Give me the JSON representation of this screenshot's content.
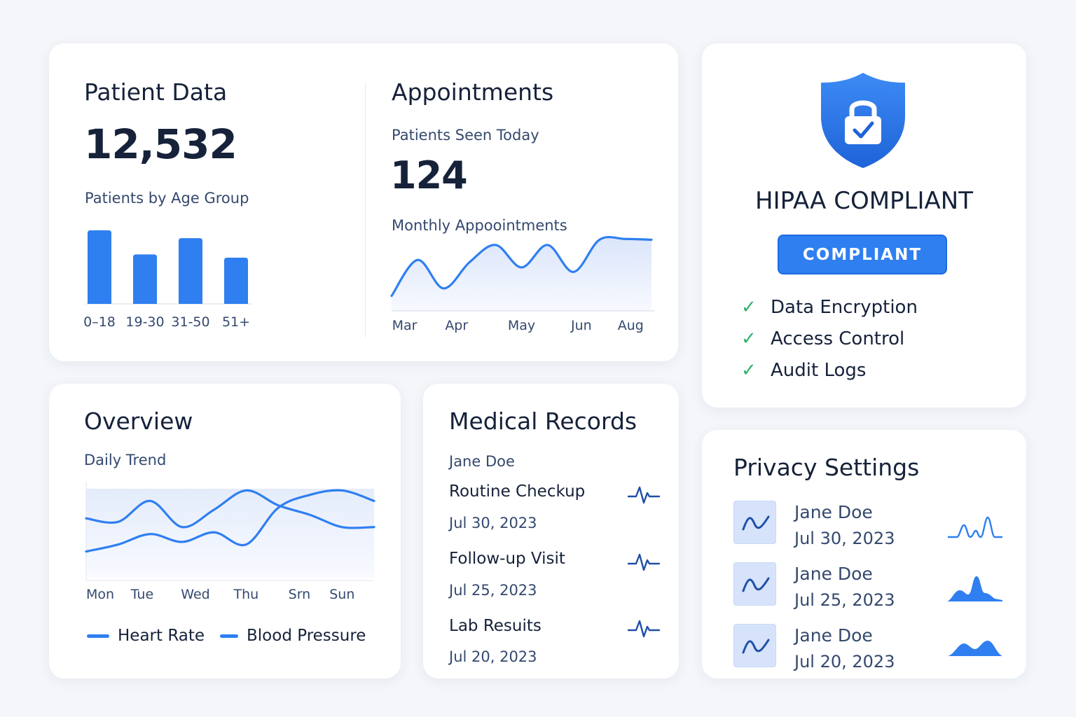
{
  "colors": {
    "accent": "#2f7ff0",
    "accent_fill": "#e9effb",
    "check": "#2fb36b",
    "text_dark": "#16223a",
    "text_muted": "#34496e",
    "background": "#f4f6fa"
  },
  "patient_data": {
    "title": "Patient Data",
    "total": "12,532",
    "chart_title": "Patients by Age Group"
  },
  "appointments": {
    "title": "Appointments",
    "seen_label": "Patients Seen Today",
    "seen_value": "124",
    "chart_title": "Monthly Appoointments"
  },
  "hipaa": {
    "shield_icon": "shield-lock-check-icon",
    "title": "HIPAA COMPLIANT",
    "badge": "COMPLIANT",
    "items": [
      {
        "icon": "check-icon",
        "label": "Data Encryption"
      },
      {
        "icon": "check-icon",
        "label": "Access Control"
      },
      {
        "icon": "check-icon",
        "label": "Audit Logs"
      }
    ]
  },
  "overview": {
    "title": "Overview",
    "subtitle": "Daily Trend",
    "legend": [
      "Heart Rate",
      "Blood Pressure"
    ]
  },
  "records": {
    "title": "Medical Records",
    "patient": "Jane Doe",
    "items": [
      {
        "name": "Routine Checkup",
        "date": "Jul 30, 2023",
        "icon": "pulse-icon"
      },
      {
        "name": "Follow-up Visit",
        "date": "Jul 25, 2023",
        "icon": "pulse-icon"
      },
      {
        "name": "Lab Resuits",
        "date": "Jul 20, 2023",
        "icon": "pulse-icon"
      }
    ]
  },
  "privacy": {
    "title": "Privacy Settings",
    "items": [
      {
        "name": "Jane Doe",
        "date": "Jul 30, 2023",
        "icon": "trend-icon",
        "spark": "sparkline-peaks-icon"
      },
      {
        "name": "Jane Doe",
        "date": "Jul 25, 2023",
        "icon": "trend-icon",
        "spark": "filled-peak-icon"
      },
      {
        "name": "Jane Doe",
        "date": "Jul 20, 2023",
        "icon": "trend-icon",
        "spark": "filled-hills-icon"
      }
    ]
  },
  "chart_data": [
    {
      "type": "bar",
      "title": "Patients by Age Group",
      "categories": [
        "0–18",
        "19-30",
        "31-50",
        "51+"
      ],
      "values": [
        113,
        76,
        101,
        71
      ],
      "ylim": [
        0,
        120
      ],
      "grid": false
    },
    {
      "type": "area",
      "title": "Monthly Appoointments",
      "x": [
        0,
        1,
        2,
        3,
        4,
        5,
        6,
        7,
        8,
        9,
        10
      ],
      "values": [
        20,
        68,
        30,
        65,
        88,
        58,
        88,
        52,
        95,
        96,
        95
      ],
      "tick_labels": [
        "Mar",
        "Apr",
        "May",
        "Jun",
        "Aug"
      ],
      "tick_positions": [
        0.5,
        2.5,
        5,
        7.3,
        9.2
      ],
      "ylim": [
        0,
        100
      ],
      "grid": false
    },
    {
      "type": "line",
      "title": "Daily Trend",
      "categories": [
        "Mon",
        "Tue",
        "Wed",
        "Thu",
        "Srn",
        "Sun"
      ],
      "x": [
        0,
        0.6,
        1.2,
        1.8,
        2.4,
        3.0,
        3.6,
        4.2,
        4.8,
        5.4
      ],
      "series": [
        {
          "name": "Heart Rate",
          "values": [
            68,
            64,
            88,
            58,
            78,
            100,
            83,
            72,
            58,
            58
          ]
        },
        {
          "name": "Blood Pressure",
          "values": [
            30,
            38,
            50,
            41,
            52,
            38,
            80,
            95,
            100,
            88
          ]
        }
      ],
      "ylim": [
        0,
        110
      ],
      "legend": "bottom",
      "grid": false
    }
  ]
}
